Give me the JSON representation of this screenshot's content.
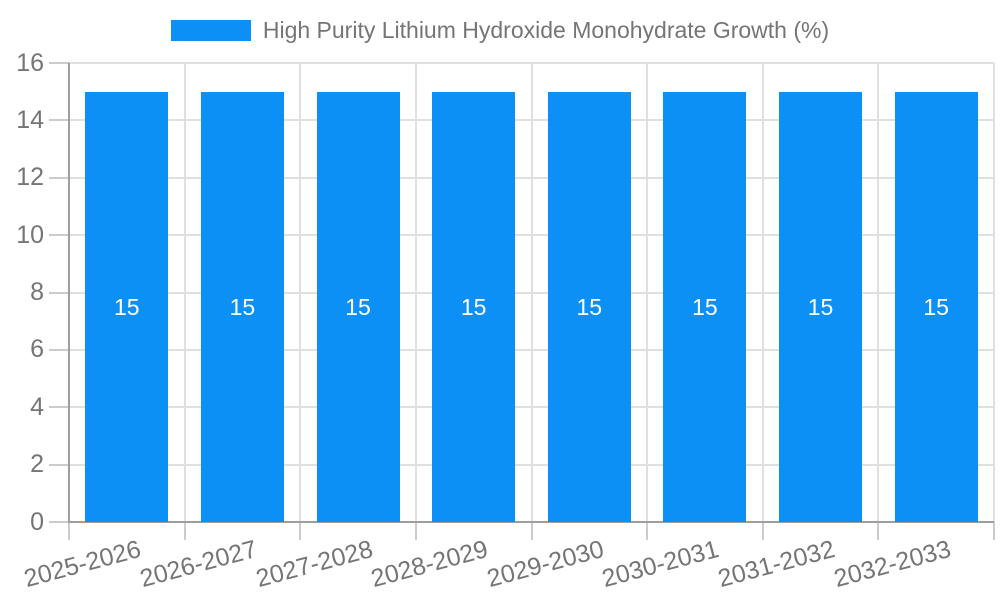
{
  "chart_data": {
    "type": "bar",
    "title": "High Purity Lithium Hydroxide Monohydrate Growth (%)",
    "legend": {
      "position": "top",
      "label": "High Purity Lithium Hydroxide Monohydrate Growth (%)"
    },
    "categories": [
      "2025-2026",
      "2026-2027",
      "2027-2028",
      "2028-2029",
      "2029-2030",
      "2030-2031",
      "2031-2032",
      "2032-2033"
    ],
    "values": [
      15,
      15,
      15,
      15,
      15,
      15,
      15,
      15
    ],
    "bar_value_labels": [
      "15",
      "15",
      "15",
      "15",
      "15",
      "15",
      "15",
      "15"
    ],
    "xlabel": "",
    "ylabel": "",
    "ylim": [
      0,
      16
    ],
    "yticks": [
      0,
      2,
      4,
      6,
      8,
      10,
      12,
      14,
      16
    ],
    "ytick_labels": [
      "0",
      "2",
      "4",
      "6",
      "8",
      "10",
      "12",
      "14",
      "16"
    ],
    "grid": true,
    "x_tick_label_rotation_deg": -15,
    "colors": {
      "bar": "#0D90F5",
      "bar_value_text": "#ffffff",
      "axis_text": "#757575",
      "grid_line": "#e0e0e0",
      "tick_line": "#cccccc",
      "axis_line": "#9e9e9e",
      "background": "#ffffff"
    }
  }
}
